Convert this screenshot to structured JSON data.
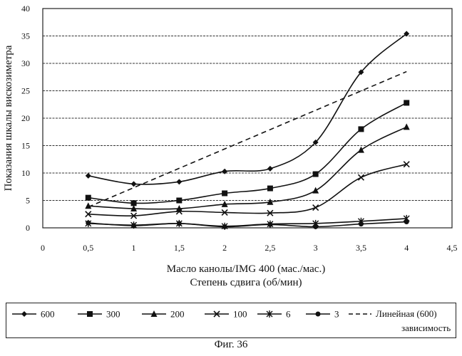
{
  "chart_data": {
    "type": "line",
    "title": "",
    "xlabel_lines": [
      "Масло канолы/IMG 400 (мас./мас.)",
      "Степень сдвига (об/мин)"
    ],
    "ylabel": "Показания шкалы вискозиметра",
    "xlim": [
      0,
      4.5
    ],
    "ylim": [
      0,
      40
    ],
    "x_ticks": [
      0,
      0.5,
      1,
      1.5,
      2,
      2.5,
      3,
      3.5,
      4,
      4.5
    ],
    "x_tick_labels": [
      "0",
      "0,5",
      "1",
      "1,5",
      "2",
      "2,5",
      "3",
      "3,5",
      "4",
      "4,5"
    ],
    "y_ticks": [
      0,
      5,
      10,
      15,
      20,
      25,
      30,
      35,
      40
    ],
    "y_tick_labels": [
      "0",
      "5",
      "10",
      "15",
      "20",
      "25",
      "30",
      "35",
      "40"
    ],
    "grid": "horizontal",
    "legend_position": "bottom",
    "series": [
      {
        "name": "600",
        "marker": "diamond",
        "x": [
          0.5,
          1,
          1.5,
          2,
          2.5,
          3,
          3.5,
          4
        ],
        "y": [
          9.5,
          8,
          8.4,
          10.3,
          10.8,
          15.6,
          28.4,
          35.4
        ]
      },
      {
        "name": "300",
        "marker": "square",
        "x": [
          0.5,
          1,
          1.5,
          2,
          2.5,
          3,
          3.5,
          4
        ],
        "y": [
          5.5,
          4.5,
          5.0,
          6.3,
          7.2,
          9.8,
          18.0,
          22.8
        ]
      },
      {
        "name": "200",
        "marker": "triangle",
        "x": [
          0.5,
          1,
          1.5,
          2,
          2.5,
          3,
          3.5,
          4
        ],
        "y": [
          4.0,
          3.5,
          3.5,
          4.3,
          4.7,
          6.8,
          14.2,
          18.4
        ]
      },
      {
        "name": "100",
        "marker": "x",
        "x": [
          0.5,
          1,
          1.5,
          2,
          2.5,
          3,
          3.5,
          4
        ],
        "y": [
          2.5,
          2.2,
          3.0,
          2.8,
          2.7,
          3.7,
          9.2,
          11.6
        ]
      },
      {
        "name": "6",
        "marker": "asterisk",
        "x": [
          0.5,
          1,
          1.5,
          2,
          2.5,
          3,
          3.5,
          4
        ],
        "y": [
          0.8,
          0.5,
          0.8,
          0.3,
          0.7,
          0.8,
          1.2,
          1.7
        ]
      },
      {
        "name": "3",
        "marker": "circle",
        "x": [
          0.5,
          1,
          1.5,
          2,
          2.5,
          3,
          3.5,
          4
        ],
        "y": [
          0.9,
          0.4,
          0.8,
          0.2,
          0.6,
          0.2,
          0.7,
          1.1
        ]
      },
      {
        "name": "Линейная (600) зависимость",
        "name_lines": [
          "Линейная (600)",
          "зависимость"
        ],
        "marker": "none",
        "style": "dashed",
        "x": [
          0.5,
          4
        ],
        "y": [
          3.8,
          28.5
        ]
      }
    ]
  },
  "caption": "Фиг. 36"
}
